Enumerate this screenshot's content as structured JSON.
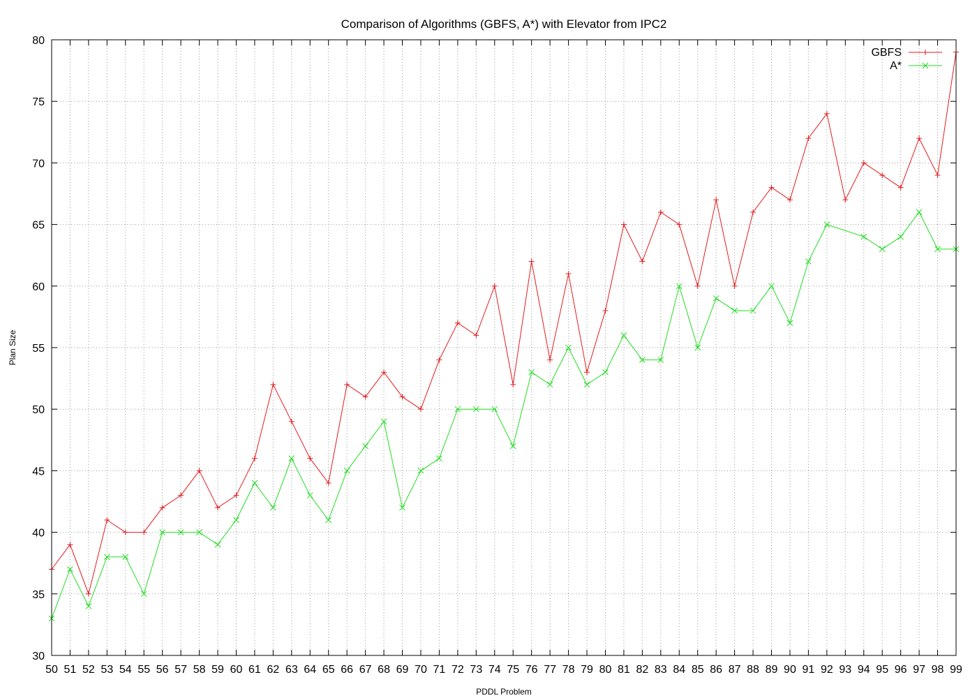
{
  "chart_data": {
    "type": "line",
    "title": "Comparison of Algorithms (GBFS, A*) with Elevator from IPC2",
    "xlabel": "PDDL Problem",
    "ylabel": "Plan Size",
    "x": [
      50,
      51,
      52,
      53,
      54,
      55,
      56,
      57,
      58,
      59,
      60,
      61,
      62,
      63,
      64,
      65,
      66,
      67,
      68,
      69,
      70,
      71,
      72,
      73,
      74,
      75,
      76,
      77,
      78,
      79,
      80,
      81,
      82,
      83,
      84,
      85,
      86,
      87,
      88,
      89,
      90,
      91,
      92,
      93,
      94,
      95,
      96,
      97,
      98,
      99
    ],
    "xlim": [
      50,
      99
    ],
    "ylim": [
      30,
      80
    ],
    "yticks": [
      30,
      35,
      40,
      45,
      50,
      55,
      60,
      65,
      70,
      75,
      80
    ],
    "grid": true,
    "legend_position": "top-right",
    "series": [
      {
        "name": "GBFS",
        "color": "#e41a1c",
        "marker": "plus",
        "x": [
          50,
          51,
          52,
          53,
          54,
          55,
          56,
          57,
          58,
          59,
          60,
          61,
          62,
          63,
          64,
          65,
          66,
          67,
          68,
          69,
          70,
          71,
          72,
          73,
          74,
          75,
          76,
          77,
          78,
          79,
          80,
          81,
          82,
          83,
          84,
          85,
          86,
          87,
          88,
          89,
          90,
          91,
          92,
          93,
          94,
          95,
          96,
          97,
          98,
          99
        ],
        "values": [
          37,
          39,
          35,
          41,
          40,
          40,
          42,
          43,
          45,
          42,
          43,
          46,
          52,
          49,
          46,
          44,
          52,
          51,
          53,
          51,
          50,
          54,
          57,
          56,
          60,
          52,
          62,
          54,
          61,
          53,
          58,
          65,
          62,
          66,
          65,
          60,
          67,
          60,
          66,
          68,
          67,
          72,
          74,
          67,
          70,
          69,
          68,
          72,
          69,
          79
        ]
      },
      {
        "name": "A*",
        "color": "#22dd22",
        "marker": "cross",
        "x": [
          50,
          51,
          52,
          53,
          54,
          55,
          56,
          57,
          58,
          59,
          60,
          61,
          62,
          63,
          64,
          65,
          66,
          67,
          68,
          69,
          70,
          71,
          72,
          73,
          74,
          75,
          76,
          77,
          78,
          79,
          80,
          81,
          82,
          83,
          84,
          85,
          86,
          87,
          88,
          89,
          90,
          91,
          92,
          94,
          95,
          96,
          97,
          98,
          99
        ],
        "values": [
          33,
          37,
          34,
          38,
          38,
          35,
          40,
          40,
          40,
          39,
          41,
          44,
          42,
          46,
          43,
          41,
          45,
          47,
          49,
          42,
          45,
          46,
          50,
          50,
          50,
          47,
          53,
          52,
          55,
          52,
          53,
          56,
          54,
          54,
          60,
          55,
          59,
          58,
          58,
          60,
          57,
          62,
          65,
          64,
          63,
          64,
          66,
          63,
          63
        ]
      }
    ]
  }
}
